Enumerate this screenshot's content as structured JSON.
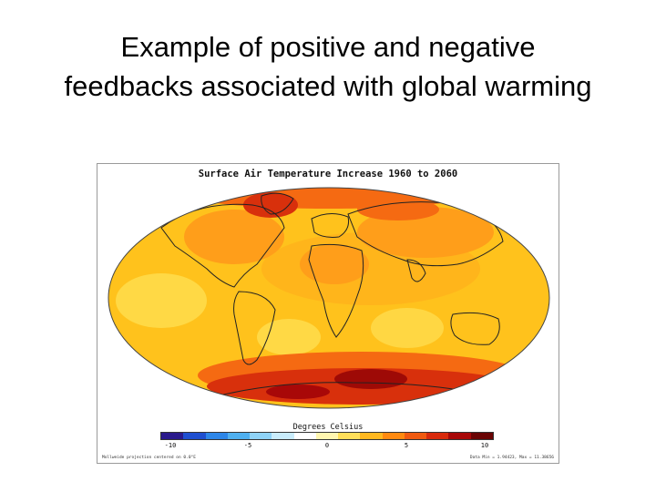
{
  "slide": {
    "title": "Example of positive and negative feedbacks associated with global warming"
  },
  "map": {
    "title": "Surface Air Temperature Increase 1960 to 2060",
    "colorbar_label": "Degrees Celsius",
    "colorbar_ticks": [
      "-10",
      "-5",
      "0",
      "5",
      "10"
    ],
    "colorbar_colors": [
      "#2a1a8c",
      "#1f4fd0",
      "#2d86e8",
      "#4fb0f0",
      "#8fd3f7",
      "#c9ecfb",
      "#ffffff",
      "#fff6b0",
      "#ffdf5a",
      "#ffb820",
      "#ff8a10",
      "#f05a10",
      "#d82a0c",
      "#a80808",
      "#6a0404"
    ],
    "footnote_left": "Mollweide projection centered on 0.0°E",
    "footnote_right": "Data Min = 1.94423, Max = 11.38656",
    "colors": {
      "base": "#ffc21c",
      "light": "#ffdb4a",
      "warm": "#ff9e1a",
      "hot": "#f56a12",
      "hotter": "#d8300c",
      "hottest": "#9e0a06",
      "coast": "#222222"
    }
  }
}
